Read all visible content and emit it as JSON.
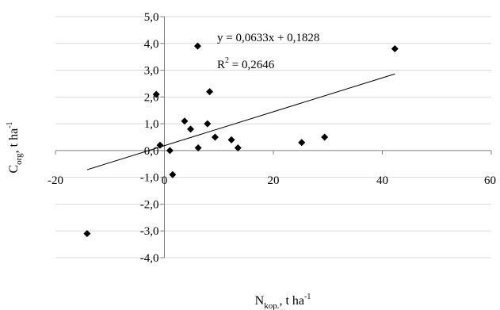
{
  "chart_data": {
    "type": "scatter",
    "title": "",
    "xlabel": {
      "main": "N",
      "sub": "kop.",
      "suffix": ", t ha",
      "sup": "-1"
    },
    "ylabel": {
      "main": "C",
      "sub": "org",
      "suffix": ", t ha",
      "sup": "-1"
    },
    "xlim": [
      -20,
      60
    ],
    "ylim": [
      -4,
      5
    ],
    "x_ticks": [
      -20,
      0,
      20,
      40,
      60
    ],
    "x_tick_labels": [
      "-20",
      "0",
      "20",
      "40",
      "60"
    ],
    "y_ticks": [
      5,
      4,
      3,
      2,
      1,
      0,
      -1,
      -2,
      -3,
      -4
    ],
    "y_tick_labels": [
      "5,0",
      "4,0",
      "3,0",
      "2,0",
      "1,0",
      "0,0",
      "-1,0",
      "-2,0",
      "-3,0",
      "-4,0"
    ],
    "grid": {
      "horizontal": true,
      "vertical": false
    },
    "marker": "diamond",
    "marker_color": "#000000",
    "line_color": "#000000",
    "grid_color": "#d9d9d9",
    "points": [
      {
        "x": -14.2,
        "y": -3.1
      },
      {
        "x": -1.5,
        "y": 2.1
      },
      {
        "x": -0.8,
        "y": 0.2
      },
      {
        "x": 1.0,
        "y": 0.0
      },
      {
        "x": 1.5,
        "y": -0.9
      },
      {
        "x": 3.7,
        "y": 1.1
      },
      {
        "x": 4.8,
        "y": 0.8
      },
      {
        "x": 6.1,
        "y": 3.9
      },
      {
        "x": 6.2,
        "y": 0.1
      },
      {
        "x": 7.9,
        "y": 1.0
      },
      {
        "x": 8.3,
        "y": 2.2
      },
      {
        "x": 9.3,
        "y": 0.5
      },
      {
        "x": 12.3,
        "y": 0.4
      },
      {
        "x": 13.5,
        "y": 0.1
      },
      {
        "x": 25.2,
        "y": 0.3
      },
      {
        "x": 29.4,
        "y": 0.5
      },
      {
        "x": 42.3,
        "y": 3.8
      }
    ],
    "trendline": {
      "slope": 0.0633,
      "intercept": 0.1828,
      "x_range": [
        -14.2,
        42.3
      ]
    },
    "equation_text": "y = 0,0633x + 0,1828",
    "r2_label": "R",
    "r2_sup": "2",
    "r2_value_text": " = 0,2646"
  }
}
